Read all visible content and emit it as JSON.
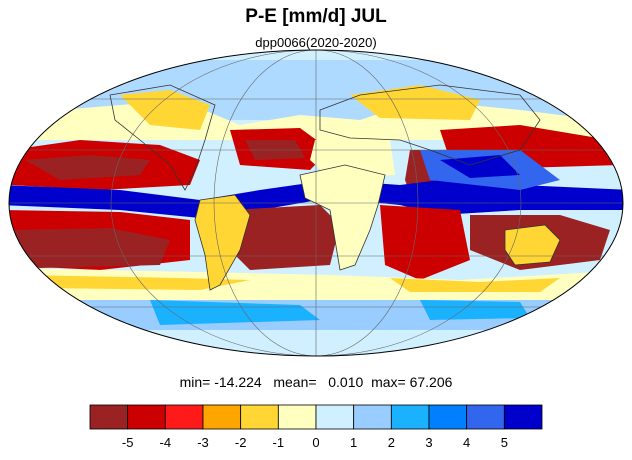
{
  "title": "P-E [mm/d] JUL",
  "subtitle": "dpp0066(2020-2020)",
  "stats": {
    "min_label": "min=",
    "min_value": "-14.224",
    "mean_label": "mean=",
    "mean_value": "0.010",
    "max_label": "max=",
    "max_value": "67.206"
  },
  "colorbar": {
    "colors": [
      "#9b2222",
      "#cc0000",
      "#ff1a1a",
      "#ffa500",
      "#ffd633",
      "#ffffc0",
      "#d0f0ff",
      "#99ccff",
      "#1ab2ff",
      "#0080ff",
      "#3366ee",
      "#0000cc"
    ],
    "ticks": [
      "-5",
      "-4",
      "-3",
      "-2",
      "-1",
      "0",
      "1",
      "2",
      "3",
      "4",
      "5"
    ]
  },
  "map": {
    "projection": "mollweide",
    "palette": {
      "deep_red": "#9b2222",
      "red": "#cc0000",
      "bright_red": "#ff1a1a",
      "orange": "#ffa500",
      "yellow": "#ffd633",
      "pale_yellow": "#ffffc0",
      "light_blue": "#d0f0ff",
      "sky_blue": "#99ccff",
      "cyan_blue": "#1ab2ff",
      "blue": "#0080ff",
      "royal_blue": "#3366ee",
      "dark_blue": "#0000cc"
    }
  }
}
